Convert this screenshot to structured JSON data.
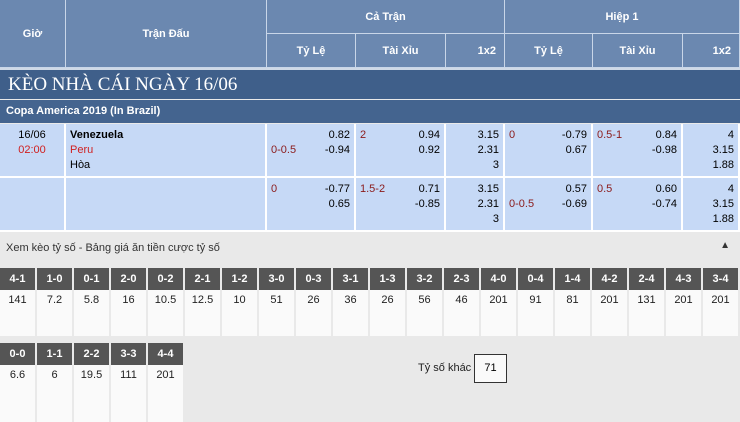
{
  "header": {
    "time": "Giờ",
    "match": "Trận Đấu",
    "full": "Cả Trận",
    "half": "Hiệp 1",
    "handicap": "Tỷ Lệ",
    "ou": "Tài Xỉu",
    "x12": "1x2"
  },
  "title": "KÈO NHÀ CÁI NGÀY 16/06",
  "league": "Copa America 2019 (In Brazil)",
  "match": {
    "date": "16/06",
    "time": "02:00",
    "home": "Venezuela",
    "away": "Peru",
    "draw": "Hòa"
  },
  "rows": [
    {
      "hdp": "0-0.5",
      "hdp_top": "",
      "hdp_o": [
        "0.82",
        "-0.94"
      ],
      "ou": "2",
      "ou_o": [
        "0.94",
        "0.92"
      ],
      "x12": [
        "3.15",
        "2.31",
        "3"
      ],
      "h_hdp": "0",
      "h_hdp_bottom": "",
      "h_hdp_o": [
        "-0.79",
        "0.67"
      ],
      "h_ou": "0.5-1",
      "h_ou_o": [
        "0.84",
        "-0.98"
      ],
      "h_x12": [
        "4",
        "3.15",
        "1.88"
      ]
    },
    {
      "hdp": "",
      "hdp_top": "0",
      "hdp_o": [
        "-0.77",
        "0.65"
      ],
      "ou": "1.5-2",
      "ou_o": [
        "0.71",
        "-0.85"
      ],
      "x12": [
        "3.15",
        "2.31",
        "3"
      ],
      "h_hdp": "",
      "h_hdp_bottom": "0-0.5",
      "h_hdp_o": [
        "0.57",
        "-0.69"
      ],
      "h_ou": "0.5",
      "h_ou_o": [
        "0.60",
        "-0.74"
      ],
      "h_x12": [
        "4",
        "3.15",
        "1.88"
      ]
    }
  ],
  "scores_title": "Xem kèo tỷ số - Bảng giá ăn tiền cược tỷ số",
  "scores1": [
    [
      "4-1",
      "141"
    ],
    [
      "1-0",
      "7.2"
    ],
    [
      "0-1",
      "5.8"
    ],
    [
      "2-0",
      "16"
    ],
    [
      "0-2",
      "10.5"
    ],
    [
      "2-1",
      "12.5"
    ],
    [
      "1-2",
      "10"
    ],
    [
      "3-0",
      "51"
    ],
    [
      "0-3",
      "26"
    ],
    [
      "3-1",
      "36"
    ],
    [
      "1-3",
      "26"
    ],
    [
      "3-2",
      "56"
    ],
    [
      "2-3",
      "46"
    ],
    [
      "4-0",
      "201"
    ],
    [
      "0-4",
      "91"
    ],
    [
      "1-4",
      "81"
    ],
    [
      "4-2",
      "201"
    ],
    [
      "2-4",
      "131"
    ],
    [
      "4-3",
      "201"
    ],
    [
      "3-4",
      "201"
    ]
  ],
  "scores2": [
    [
      "0-0",
      "6.6"
    ],
    [
      "1-1",
      "6"
    ],
    [
      "2-2",
      "19.5"
    ],
    [
      "3-3",
      "111"
    ],
    [
      "4-4",
      "201"
    ]
  ],
  "other_label": "Tỷ số khác",
  "other_value": "71"
}
